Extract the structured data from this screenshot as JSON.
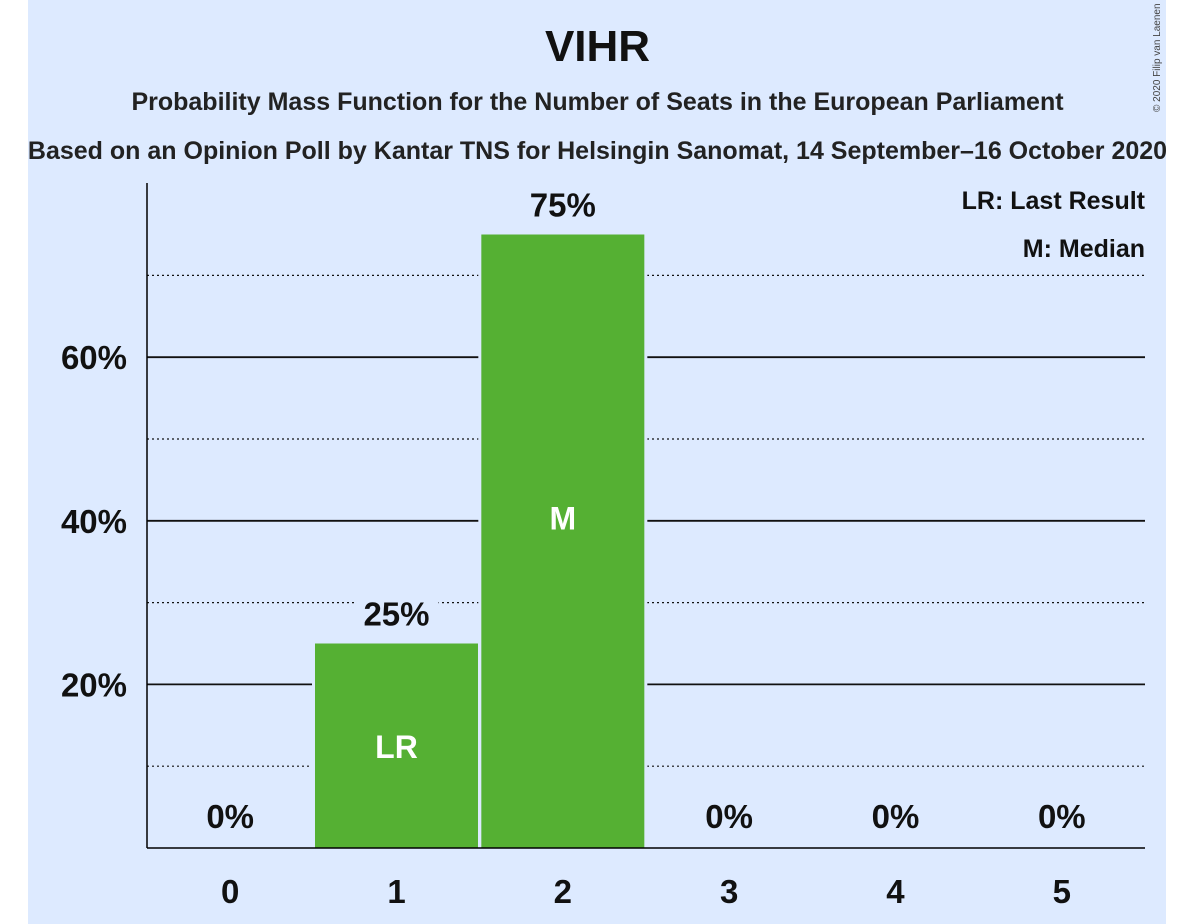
{
  "title": "VIHR",
  "subtitle": "Probability Mass Function for the Number of Seats in the European Parliament",
  "subtitle2": "Based on an Opinion Poll by Kantar TNS for Helsingin Sanomat, 14 September–16 October 2020",
  "copyright": "© 2020 Filip van Laenen",
  "legend": {
    "last_result": "LR: Last Result",
    "median": "M: Median"
  },
  "colors": {
    "background": "#ddeaff",
    "bar": "#55b033"
  },
  "chart_data": {
    "type": "bar",
    "categories": [
      "0",
      "1",
      "2",
      "3",
      "4",
      "5"
    ],
    "values": [
      0,
      25,
      75,
      0,
      0,
      0
    ],
    "value_labels": [
      "0%",
      "25%",
      "75%",
      "0%",
      "0%",
      "0%"
    ],
    "bar_markers": [
      "",
      "LR",
      "M",
      "",
      "",
      ""
    ],
    "y_ticks": [
      20,
      40,
      60
    ],
    "y_tick_labels": [
      "20%",
      "40%",
      "60%"
    ],
    "y_minor_ticks": [
      10,
      30,
      50,
      70
    ],
    "ylim": [
      0,
      80
    ],
    "grid": true,
    "legend_position": "top-right"
  }
}
